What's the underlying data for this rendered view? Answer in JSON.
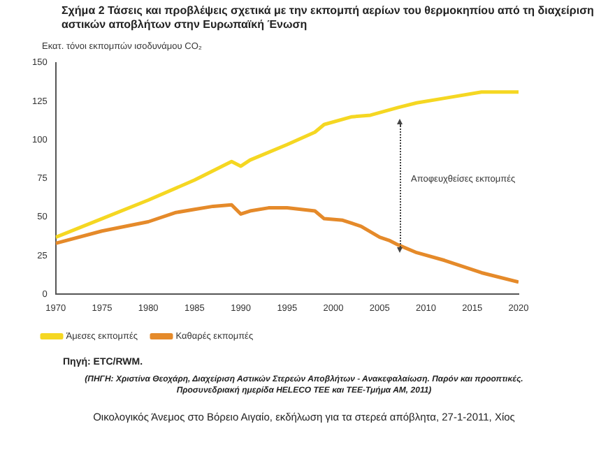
{
  "chart_data": {
    "type": "line",
    "title": "Σχήμα 2   Τάσεις και προβλέψεις σχετικά με την εκπομπή αερίων του θερμοκηπίου από τη διαχείριση αστικών αποβλήτων στην Ευρωπαϊκή Ένωση",
    "ylabel": "Εκατ. τόνοι εκπομπών ισοδυνάμου CO₂",
    "xlim": [
      1970,
      2020
    ],
    "xticks": [
      1970,
      1975,
      1980,
      1985,
      1990,
      1995,
      2000,
      2005,
      2010,
      2015,
      2020
    ],
    "ylim": [
      0,
      150
    ],
    "yticks": [
      0,
      25,
      50,
      75,
      100,
      125,
      150
    ],
    "grid": false,
    "legend": "bottom",
    "marker": "none",
    "line_style": "solid",
    "series": [
      {
        "name": "Άμεσες εκπομπές",
        "color": "#f5d722",
        "x": [
          1970,
          1975,
          1980,
          1985,
          1989,
          1990,
          1991,
          1995,
          1998,
          1999,
          2002,
          2004,
          2007,
          2009,
          2012,
          2016,
          2020
        ],
        "values": [
          37,
          49,
          61,
          74,
          86,
          83,
          87,
          97,
          105,
          110,
          115,
          116,
          121,
          124,
          127,
          131,
          131
        ]
      },
      {
        "name": "Καθαρές εκπομπές",
        "color": "#e58a2a",
        "x": [
          1970,
          1975,
          1980,
          1983,
          1985,
          1987,
          1989,
          1990,
          1991,
          1993,
          1995,
          1998,
          1999,
          2001,
          2002,
          2003,
          2005,
          2006,
          2007,
          2009,
          2012,
          2016,
          2020
        ],
        "values": [
          33,
          41,
          47,
          53,
          55,
          57,
          58,
          52,
          54,
          56,
          56,
          54,
          49,
          48,
          46,
          44,
          37,
          35,
          32,
          27,
          22,
          14,
          8
        ]
      }
    ],
    "annotations": [
      "Αποφευχθείσες εκπομπές",
      "Πηγή:   ETC/RWM.",
      "(ΠΗΓΗ: Χριστίνα Θεοχάρη, Διαχείριση Αστικών Στερεών Αποβλήτων - Ανακεφαλαίωση. Παρόν και προοπτικές. Προσυνεδριακή ημερίδα HELECO ΤΕΕ και ΤΕΕ-Τμήμα ΑΜ, 2011)",
      "Οικολογικός Άνεμος στο Βόρειο Αιγαίο, εκδήλωση για τα στερεά απόβλητα, 27-1-2011, Χίος"
    ]
  }
}
